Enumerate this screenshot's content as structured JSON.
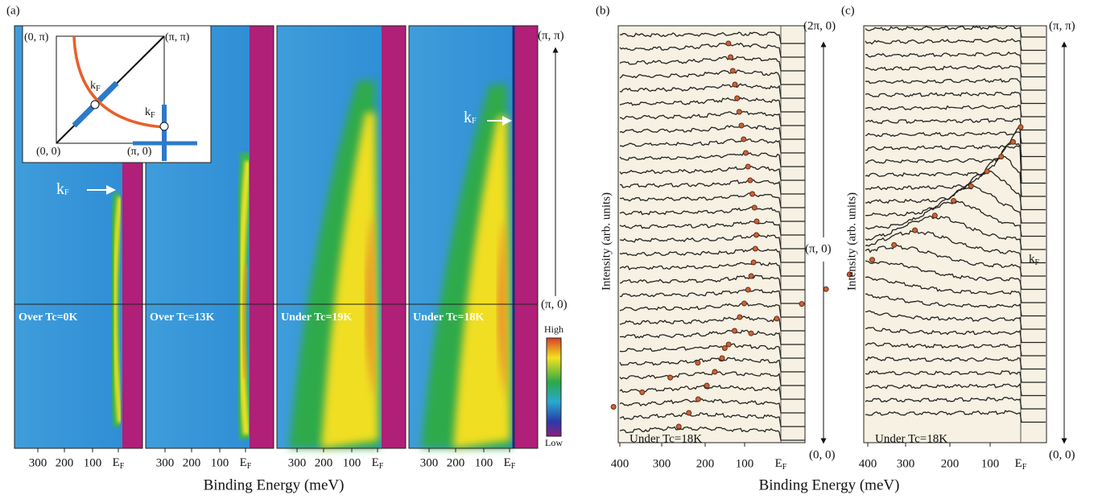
{
  "panel_a": {
    "label": "(a)",
    "inset": {
      "corners": [
        "(0, π)",
        "(π, π)",
        "(0, 0)",
        "(π, 0)"
      ]
    },
    "maps": [
      "Over Tc=0K",
      "Over Tc=13K",
      "Under Tc=19K",
      "Under Tc=18K"
    ],
    "energy_ticks": [
      "300",
      "200",
      "100"
    ],
    "k_points": [
      "(π, π)",
      "(π, 0)"
    ],
    "colorbar": [
      "High",
      "Low"
    ],
    "x_label": "Binding Energy (meV)"
  },
  "fermi": {
    "main": "E",
    "sub": "F"
  },
  "kf": {
    "main": "k",
    "sub": "F"
  },
  "panel_b": {
    "label": "(b)",
    "y_label": "Intensity (arb. units)",
    "energy_ticks": [
      "400",
      "300",
      "200",
      "100"
    ],
    "k_points": [
      "(2π, 0)",
      "(π, 0)",
      "(0, 0)"
    ],
    "note": "Under Tc=18K"
  },
  "panel_c": {
    "label": "(c)",
    "y_label": "Intensity (arb. units)",
    "energy_ticks": [
      "400",
      "300",
      "200",
      "100"
    ],
    "k_points": [
      "(π, π)",
      "(0, 0)"
    ],
    "note": "Under Tc=18K"
  },
  "x_label_bc": "Binding Energy (meV)"
}
